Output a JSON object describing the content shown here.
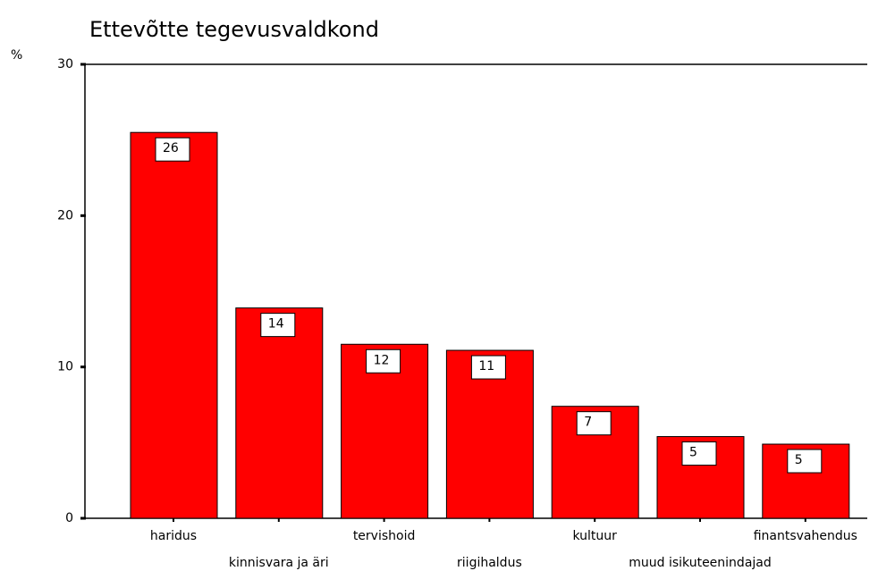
{
  "chart_data": {
    "type": "bar",
    "title": "Ettevõtte tegevusvaldkond",
    "y_label": "%",
    "categories": [
      "haridus",
      "kinnisvara ja äri",
      "tervishoid",
      "riigihaldus",
      "kultuur",
      "muud isikuteenindajad",
      "finantsvahendus"
    ],
    "values": [
      25.5,
      13.9,
      11.5,
      11.1,
      7.4,
      5.4,
      4.9
    ],
    "value_labels": [
      "26",
      "14",
      "12",
      "11",
      "7",
      "5",
      "5"
    ],
    "color": "#ff0000",
    "ylim": [
      0,
      30
    ],
    "yticks": [
      0,
      10,
      20,
      30
    ],
    "grid": false
  }
}
